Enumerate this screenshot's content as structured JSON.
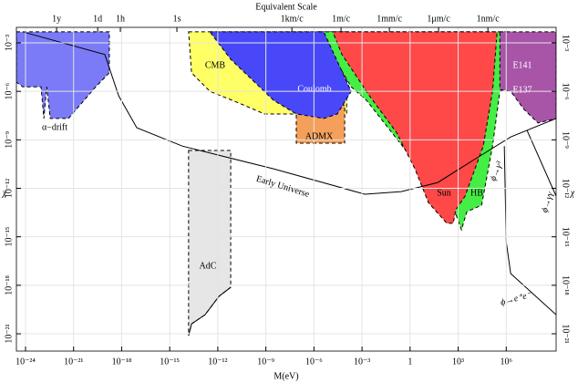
{
  "chart_data": {
    "type": "region",
    "x2label": "Equivalent Scale",
    "xlabel": "M(eV)",
    "ylabel": "χ",
    "xscale": "log",
    "yscale": "log",
    "grid": true,
    "xlim": [
      2.7e-25,
      1300000000.0
    ],
    "ylim": [
      8.5e-23,
      0.0091
    ],
    "xticks": [
      {
        "value": 1e-24,
        "label": "10⁻²⁴"
      },
      {
        "value": 1e-21,
        "label": "10⁻²¹"
      },
      {
        "value": 1e-18,
        "label": "10⁻¹⁸"
      },
      {
        "value": 1e-15,
        "label": "10⁻¹⁵"
      },
      {
        "value": 1e-12,
        "label": "10⁻¹²"
      },
      {
        "value": 1e-09,
        "label": "10⁻⁹"
      },
      {
        "value": 1e-06,
        "label": "10⁻⁶"
      },
      {
        "value": 0.001,
        "label": "10⁻³"
      },
      1,
      {
        "value": 1000.0,
        "label": "10³"
      },
      {
        "value": 1000000.0,
        "label": "10⁶"
      }
    ],
    "yticks": [
      {
        "value": 0.001,
        "label": "10⁻³"
      },
      {
        "value": 1e-06,
        "label": "10⁻⁶"
      },
      {
        "value": 1e-09,
        "label": "10⁻⁹"
      },
      {
        "value": 1e-12,
        "label": "10⁻¹²"
      },
      {
        "value": 1e-15,
        "label": "10⁻¹⁵"
      },
      {
        "value": 1e-18,
        "label": "10⁻¹⁸"
      },
      {
        "value": 1e-21,
        "label": "10⁻²¹"
      }
    ],
    "x2ticks": [
      {
        "value": 8.7e-23,
        "label": "1y"
      },
      {
        "value": 3.2e-20,
        "label": "1d"
      },
      {
        "value": 8.3e-19,
        "label": "1h"
      },
      {
        "value": 2.8e-15,
        "label": "1s"
      },
      {
        "value": 4.2e-08,
        "label": "1km/c"
      },
      {
        "value": 4.9e-05,
        "label": "1m/c"
      },
      {
        "value": 0.051,
        "label": "1mm/c"
      },
      {
        "value": 60,
        "label": "1μm/c"
      },
      {
        "value": 72000.0,
        "label": "1nm/c"
      }
    ],
    "regions": [
      {
        "color": "#7b7bf7",
        "x": [
          2.7e-25,
          1.7e-19,
          1.7e-19,
          2.4e-20,
          4.8e-22,
          3.5e-23,
          2.1e-23,
          1.4e-23,
          9.3e-24,
          6.8e-25,
          2.7e-25
        ],
        "y": [
          0.0048,
          0.0048,
          1.4e-05,
          1.9e-06,
          2.1e-08,
          2.1e-08,
          1.9e-06,
          2.1e-08,
          1.9e-06,
          1.9e-06,
          3.7e-06
        ]
      },
      {
        "color": "#ffff66",
        "x": [
          1.5e-14,
          0.00011,
          0.00011,
          7.9e-08,
          8.1e-10,
          1.6e-11,
          3.2e-13,
          2.3e-14
        ],
        "y": [
          0.0048,
          0.0048,
          4e-08,
          4e-08,
          4e-08,
          2.1e-07,
          1e-06,
          1.4e-05
        ]
      },
      {
        "color": "#f5a05a",
        "x": [
          7.9e-08,
          8.3e-05,
          8.3e-05,
          7.9e-08
        ],
        "y": [
          1.4e-07,
          1.4e-07,
          6.2e-10,
          6.2e-10
        ]
      },
      {
        "color": "#44ee44",
        "x": [
          2.1e-06,
          1900000.0,
          1900000.0,
          400000.0,
          140000.0,
          29000.0,
          3500.0,
          1600.0,
          720,
          0.0019,
          0.00021
        ],
        "y": [
          0.0048,
          0.0048,
          1.9e-06,
          1e-06,
          4.1e-10,
          8.9e-14,
          3.6e-14,
          2.7e-15,
          2.5e-14,
          2.8e-07,
          1.9e-06
        ]
      },
      {
        "color": "#4848f8",
        "x": [
          3.2e-13,
          4.1e-06,
          0.00021,
          2.9e-05,
          4.1e-06,
          7.9e-08,
          3e-09,
          6.4e-12
        ],
        "y": [
          0.0048,
          0.0048,
          1e-06,
          4e-08,
          2.1e-08,
          4e-08,
          2.8e-07,
          9.6e-05
        ]
      },
      {
        "color": "#ff4848",
        "x": [
          1.5e-05,
          270000.0,
          140000.0,
          37000.0,
          2700.0,
          720,
          490,
          195,
          14,
          2.0,
          0.14,
          0.0029,
          5.6e-05
        ],
        "y": [
          0.0048,
          0.0048,
          1e-06,
          4.1e-10,
          3.3e-13,
          4.7e-14,
          6.8e-15,
          6.8e-15,
          1.3e-13,
          1.6e-11,
          2.9e-09,
          5.3e-07,
          0.00019
        ]
      },
      {
        "color": "#a855a8",
        "x": [
          400000.0,
          1300000000.0,
          1300000000.0,
          97000000.0,
          13000000.0,
          1900000.0,
          400000.0
        ],
        "y": [
          0.0048,
          0.0048,
          2.1e-08,
          1.1e-08,
          7.6e-08,
          1e-06,
          1.3e-06
        ]
      },
      {
        "color": "#e6e6e6",
        "x": [
          1.5e-14,
          6.4e-12,
          6.4e-12,
          1.2e-12,
          1.6e-13,
          2.3e-14,
          1.5e-14
        ],
        "y": [
          2.2e-10,
          2.2e-10,
          7.5e-19,
          2.1e-19,
          1.5e-20,
          4.1e-21,
          7.6e-22
        ]
      }
    ],
    "lines": [
      {
        "x": [
          6.8e-25,
          8.9e-20,
          6.5e-19,
          8.8e-18,
          6.1e-15,
          3e-09,
          0.0015,
          0.28,
          54,
          10000.0,
          1900000.0,
          1300000000.0
        ],
        "y": [
          0.0048,
          0.00019,
          5.3e-07,
          5.6e-09,
          4.1e-10,
          1.6e-11,
          4.3e-13,
          6.3e-13,
          2.3e-12,
          6e-11,
          1.5e-09,
          2.1e-08
        ]
      },
      {
        "x": [
          1.5e-14,
          2.3e-14,
          1.6e-13,
          1.2e-12,
          6.4e-12
        ],
        "y": [
          7.6e-22,
          4.1e-21,
          1.5e-20,
          2.1e-19,
          7.5e-19
        ]
      },
      {
        "x": [
          760000.0,
          1000000.0,
          1900000.0,
          1300000000.0
        ],
        "y": [
          4.1e-10,
          5e-16,
          5.3e-18,
          1.5e-20
        ]
      },
      {
        "x": [
          20000000.0,
          1300000000.0
        ],
        "y": [
          3.8e-09,
          3.3e-13
        ]
      }
    ],
    "annotations": [
      "α−drift",
      "CMB",
      "Coulomb",
      "ADMX",
      "E141",
      "E137",
      "Sun",
      "HB",
      "AdC",
      "Early Universe",
      "ϕ→γ³",
      "ϕ→γγ",
      "ϕ→e⁺e⁻"
    ]
  }
}
